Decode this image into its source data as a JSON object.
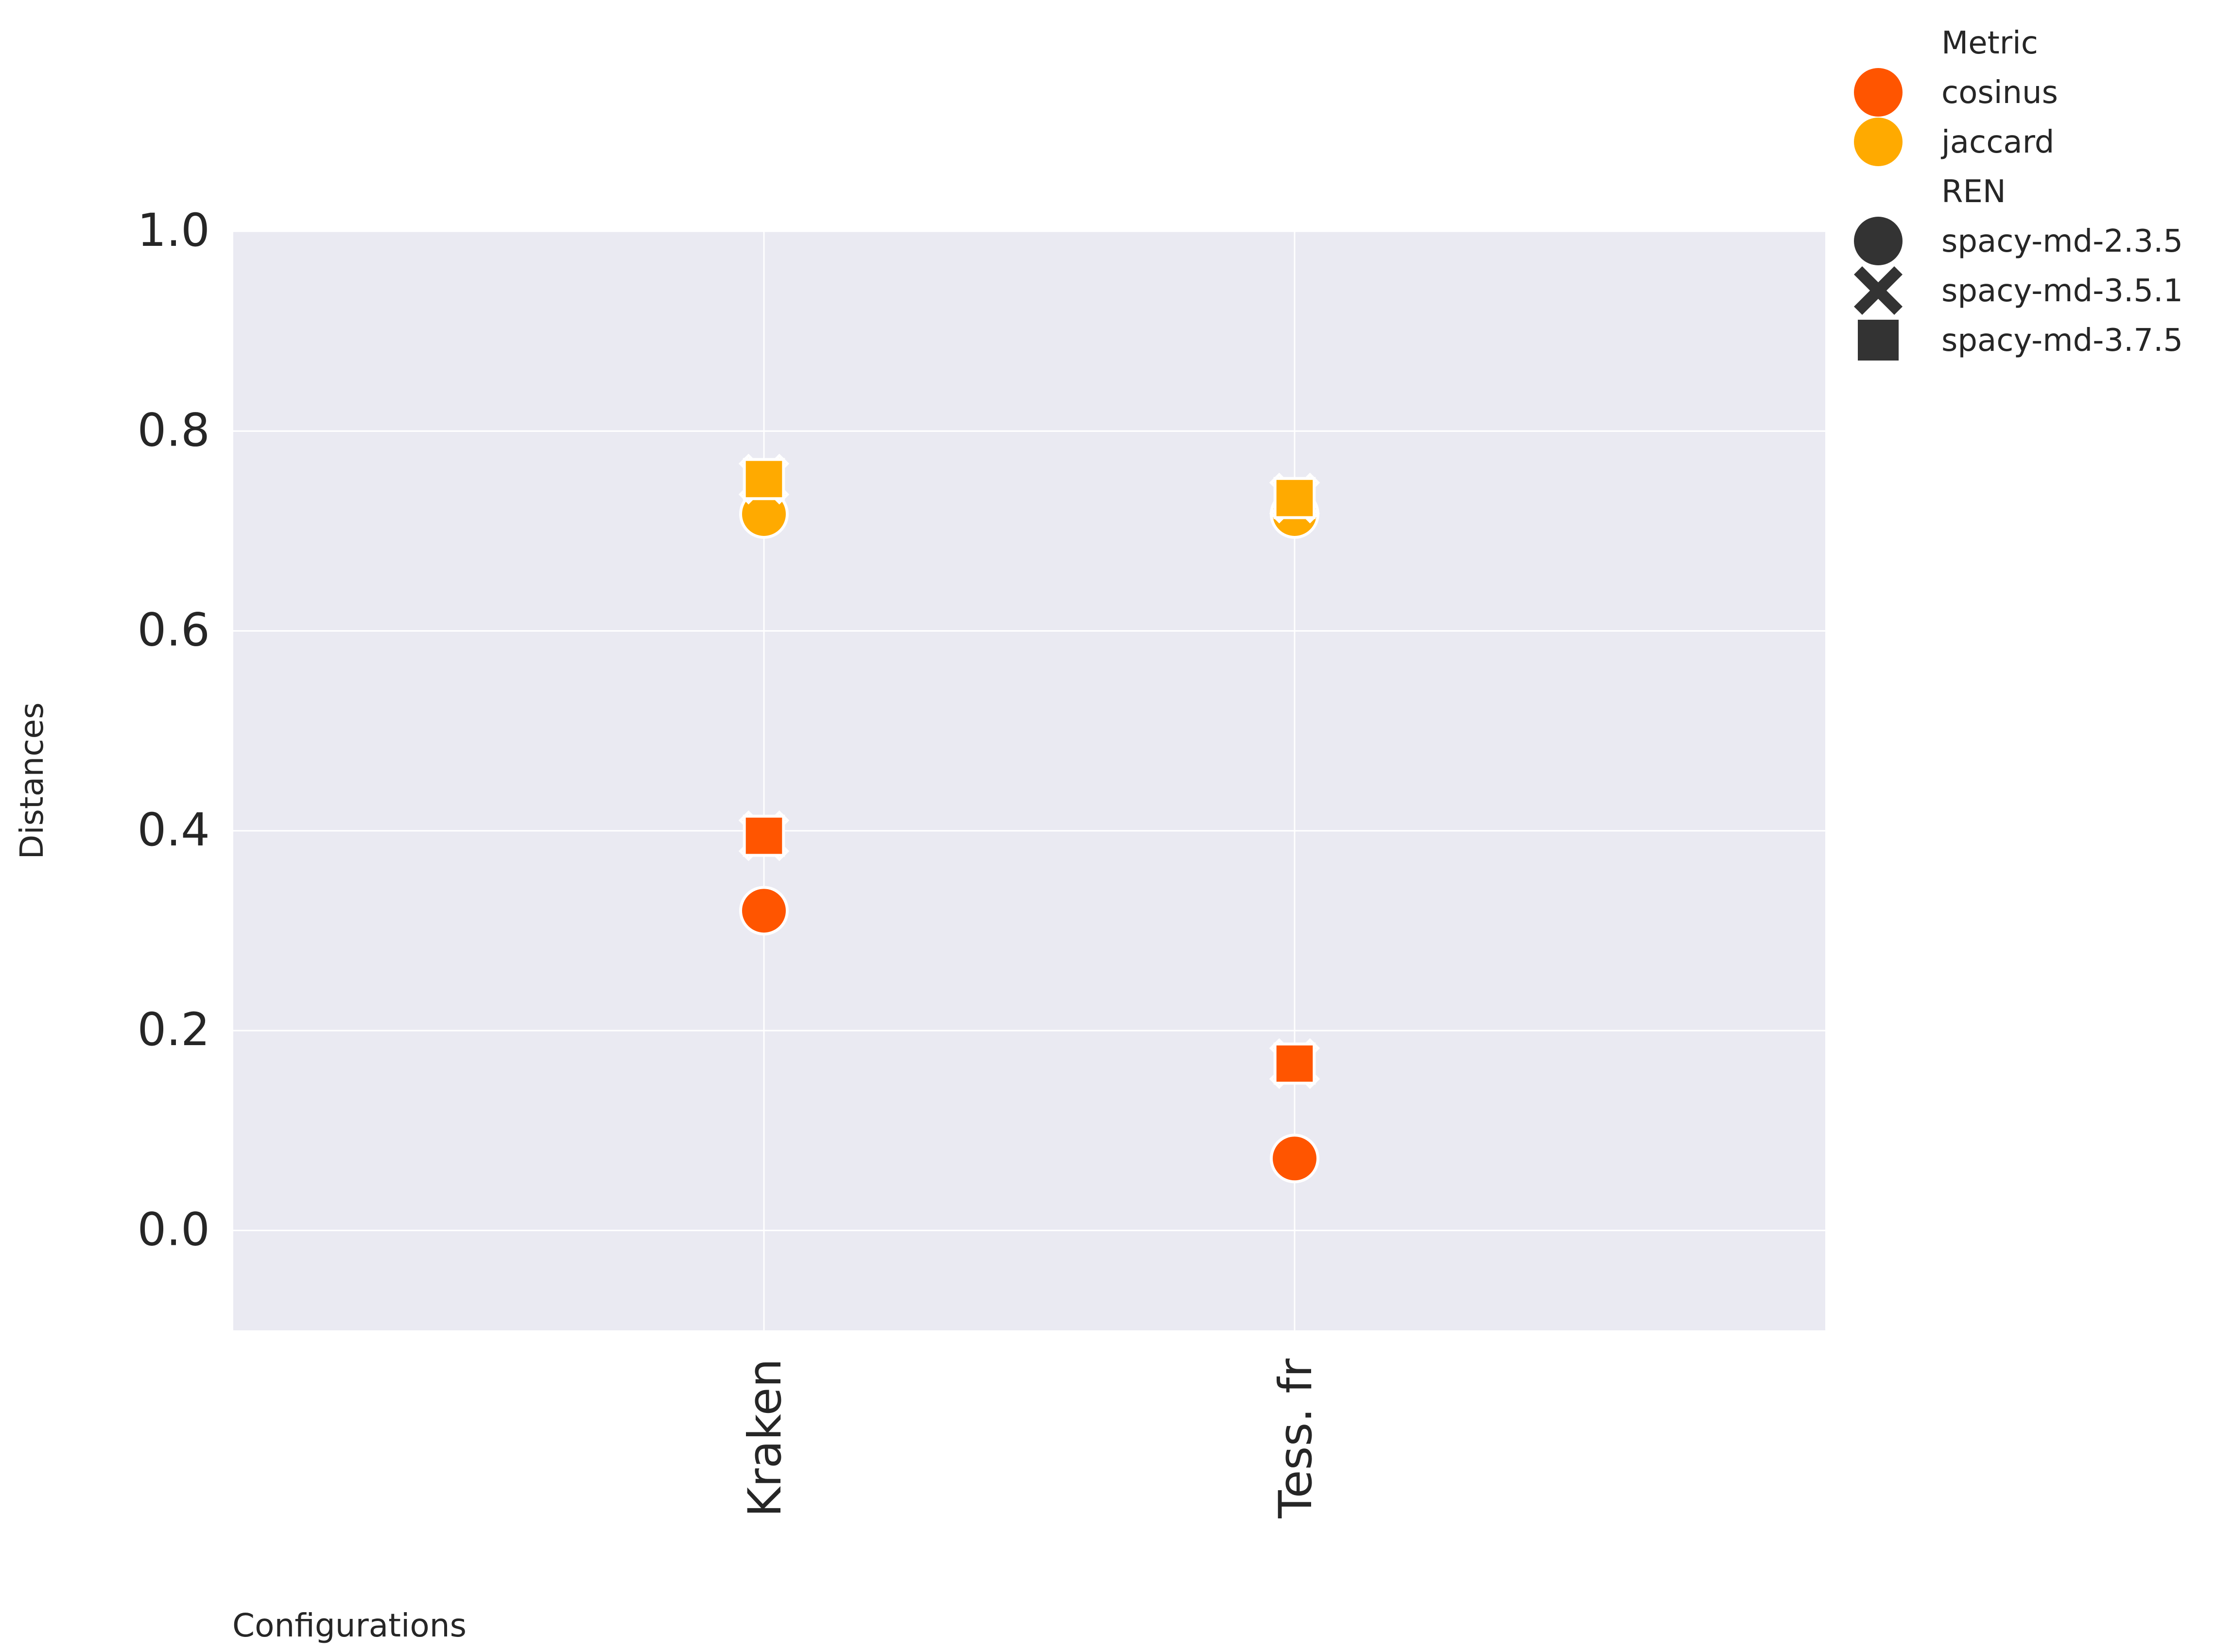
{
  "chart_data": {
    "type": "scatter",
    "xlabel": "Configurations",
    "ylabel": "Distances",
    "categories": [
      "Kraken",
      "Tess. fr"
    ],
    "ylim": [
      -0.1,
      1.0
    ],
    "yticks": [
      "0.0",
      "0.2",
      "0.4",
      "0.6",
      "0.8",
      "1.0"
    ],
    "grid": true,
    "legend_position": "top-right outside",
    "hue": {
      "title": "Metric",
      "entries": [
        {
          "name": "cosinus",
          "color": "#ff5500"
        },
        {
          "name": "jaccard",
          "color": "#ffaa00"
        }
      ]
    },
    "style": {
      "title": "REN",
      "entries": [
        {
          "name": "spacy-md-2.3.5",
          "marker": "circle"
        },
        {
          "name": "spacy-md-3.5.1",
          "marker": "x"
        },
        {
          "name": "spacy-md-3.7.5",
          "marker": "square"
        }
      ]
    },
    "points": [
      {
        "x": "Kraken",
        "metric": "cosinus",
        "ren": "spacy-md-2.3.5",
        "y": 0.32
      },
      {
        "x": "Kraken",
        "metric": "cosinus",
        "ren": "spacy-md-3.5.1",
        "y": 0.395
      },
      {
        "x": "Kraken",
        "metric": "cosinus",
        "ren": "spacy-md-3.7.5",
        "y": 0.395
      },
      {
        "x": "Kraken",
        "metric": "jaccard",
        "ren": "spacy-md-2.3.5",
        "y": 0.717
      },
      {
        "x": "Kraken",
        "metric": "jaccard",
        "ren": "spacy-md-3.5.1",
        "y": 0.752
      },
      {
        "x": "Kraken",
        "metric": "jaccard",
        "ren": "spacy-md-3.7.5",
        "y": 0.752
      },
      {
        "x": "Tess. fr",
        "metric": "cosinus",
        "ren": "spacy-md-2.3.5",
        "y": 0.072
      },
      {
        "x": "Tess. fr",
        "metric": "cosinus",
        "ren": "spacy-md-3.5.1",
        "y": 0.167
      },
      {
        "x": "Tess. fr",
        "metric": "cosinus",
        "ren": "spacy-md-3.7.5",
        "y": 0.167
      },
      {
        "x": "Tess. fr",
        "metric": "jaccard",
        "ren": "spacy-md-2.3.5",
        "y": 0.717
      },
      {
        "x": "Tess. fr",
        "metric": "jaccard",
        "ren": "spacy-md-3.5.1",
        "y": 0.733
      },
      {
        "x": "Tess. fr",
        "metric": "jaccard",
        "ren": "spacy-md-3.7.5",
        "y": 0.733
      }
    ]
  }
}
